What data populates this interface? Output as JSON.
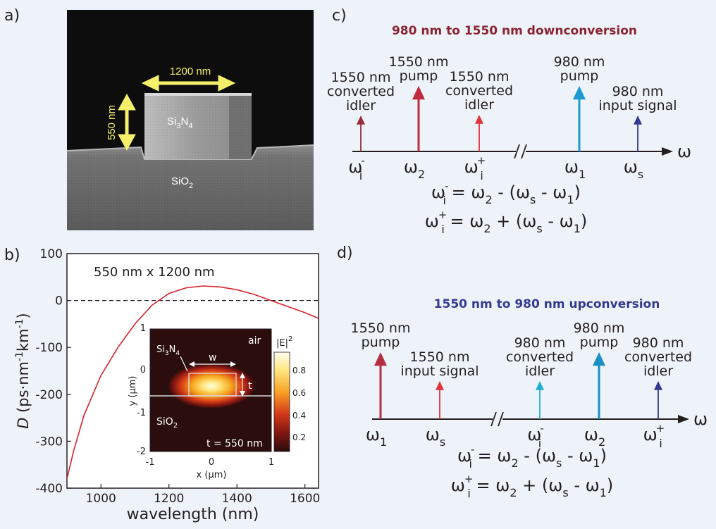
{
  "panel_labels": {
    "a": "a)",
    "b": "b)",
    "c": "c)",
    "d": "d)"
  },
  "sem": {
    "width_label": "1200 nm",
    "height_label": "550 nm",
    "core_material": {
      "base": "Si",
      "sub1": "3",
      "mid": "N",
      "sub2": "4"
    },
    "substrate_material": {
      "base": "SiO",
      "sub": "2"
    },
    "arrow_color": "#f5ef6a"
  },
  "chart_data": [
    {
      "type": "line",
      "title": "550 nm x 1200 nm",
      "xlabel": "wavelength (nm)",
      "ylabel": {
        "italic": "D",
        "pre": " (ps·nm",
        "sup1": "-1",
        "mid": "km",
        "sup2": "-1",
        "post": ")"
      },
      "xlim": [
        900,
        1640
      ],
      "ylim": [
        -400,
        100
      ],
      "xticks": [
        1000,
        1200,
        1400,
        1600
      ],
      "yticks": [
        100,
        0,
        -100,
        -200,
        -300,
        -400
      ],
      "reference_line": {
        "y": 0,
        "style": "dashed"
      },
      "series": [
        {
          "color": "#d9202a",
          "x": [
            900,
            920,
            950,
            1000,
            1050,
            1100,
            1150,
            1200,
            1250,
            1300,
            1350,
            1400,
            1450,
            1500,
            1550,
            1600,
            1640
          ],
          "y": [
            -380,
            -320,
            -245,
            -160,
            -100,
            -50,
            -10,
            15,
            27,
            31,
            29,
            23,
            13,
            0,
            -13,
            -26,
            -38
          ]
        }
      ],
      "inset": {
        "type": "heatmap",
        "xlabel": "x (μm)",
        "ylabel": "y (μm)",
        "xticks": [
          "-1",
          "0",
          "1"
        ],
        "yticks": [
          "1",
          "0",
          "-1",
          "-2"
        ],
        "colorbar_label": {
          "text": "|E|",
          "sup": "2"
        },
        "colorbar_ticks": [
          "0.8",
          "0.6",
          "0.4",
          "0.2"
        ],
        "labels": {
          "air": "air",
          "core": {
            "base": "Si",
            "sub1": "3",
            "mid": "N",
            "sub2": "4"
          },
          "substrate": {
            "base": "SiO",
            "sub": "2"
          },
          "w": "w",
          "t": "t",
          "t_value": "t = 550 nm"
        }
      }
    }
  ],
  "diagram_c": {
    "title": "980 nm to 1550 nm downconversion",
    "title_color": "#8b2232",
    "arrows": [
      {
        "label_lines": [
          "1550 nm",
          "converted",
          "idler"
        ],
        "color": "#9b2a3a",
        "omega": "ω",
        "sub": "i",
        "sup": "-"
      },
      {
        "label_lines": [
          "1550 nm",
          "pump"
        ],
        "color": "#c02a3c",
        "omega": "ω",
        "sub": "2",
        "sup": ""
      },
      {
        "label_lines": [
          "1550 nm",
          "converted",
          "idler"
        ],
        "color": "#e3323c",
        "omega": "ω",
        "sub": "i",
        "sup": "+"
      },
      {
        "label_lines": [
          "980 nm",
          "pump"
        ],
        "color": "#1a9ad1",
        "omega": "ω",
        "sub": "1",
        "sup": ""
      },
      {
        "label_lines": [
          "980 nm",
          "input signal"
        ],
        "color": "#343a8f",
        "omega": "ω",
        "sub": "s",
        "sup": ""
      }
    ],
    "axis_symbol": "ω",
    "eq1": [
      "ω",
      "i",
      "-",
      " = ω",
      "2",
      " - (ω",
      "s",
      " - ω",
      "1",
      ")"
    ],
    "eq2": [
      "ω",
      "i",
      "+",
      " = ω",
      "2",
      " + (ω",
      "s",
      " - ω",
      "1",
      ")"
    ]
  },
  "diagram_d": {
    "title": "1550 nm to 980 nm upconversion",
    "title_color": "#343a8f",
    "arrows": [
      {
        "label_lines": [
          "1550 nm",
          "pump"
        ],
        "color": "#b52d42",
        "omega": "ω",
        "sub": "1",
        "sup": ""
      },
      {
        "label_lines": [
          "1550 nm",
          "input signal"
        ],
        "color": "#e3323c",
        "omega": "ω",
        "sub": "s",
        "sup": ""
      },
      {
        "label_lines": [
          "980 nm",
          "converted",
          "idler"
        ],
        "color": "#22b0cf",
        "omega": "ω",
        "sub": "i",
        "sup": "-"
      },
      {
        "label_lines": [
          "980 nm",
          "pump"
        ],
        "color": "#1a8fc4",
        "omega": "ω",
        "sub": "2",
        "sup": ""
      },
      {
        "label_lines": [
          "980 nm",
          "converted",
          "idler"
        ],
        "color": "#343a8f",
        "omega": "ω",
        "sub": "i",
        "sup": "+"
      }
    ],
    "axis_symbol": "ω",
    "eq1": [
      "ω",
      "i",
      "-",
      " = ω",
      "2",
      " - (ω",
      "s",
      " - ω",
      "1",
      ")"
    ],
    "eq2": [
      "ω",
      "i",
      "+",
      " = ω",
      "2",
      " + (ω",
      "s",
      " - ω",
      "1",
      ")"
    ]
  }
}
